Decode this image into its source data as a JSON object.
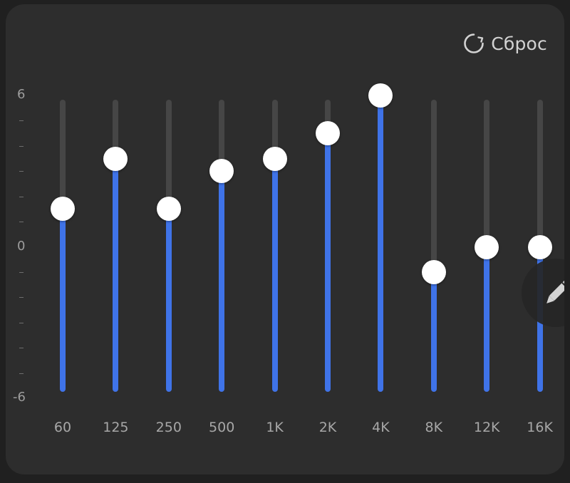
{
  "reset_button": {
    "label": "Сброс",
    "icon": "refresh-icon"
  },
  "y_axis": {
    "max_label": "6",
    "mid_label": "0",
    "min_label": "-6",
    "min": -6,
    "max": 6
  },
  "bands": [
    {
      "label": "60",
      "gain_db": 1.5
    },
    {
      "label": "125",
      "gain_db": 3.5
    },
    {
      "label": "250",
      "gain_db": 1.5
    },
    {
      "label": "500",
      "gain_db": 3.0
    },
    {
      "label": "1K",
      "gain_db": 3.5
    },
    {
      "label": "2K",
      "gain_db": 4.5
    },
    {
      "label": "4K",
      "gain_db": 6.0
    },
    {
      "label": "8K",
      "gain_db": -1.0
    },
    {
      "label": "12K",
      "gain_db": 0.0
    },
    {
      "label": "16K",
      "gain_db": 0.0
    }
  ],
  "edit_button": {
    "icon": "pencil-icon"
  },
  "colors": {
    "accent": "#3f73e8",
    "track": "#464646",
    "panel": "#2d2d2d",
    "knob": "#ffffff"
  }
}
